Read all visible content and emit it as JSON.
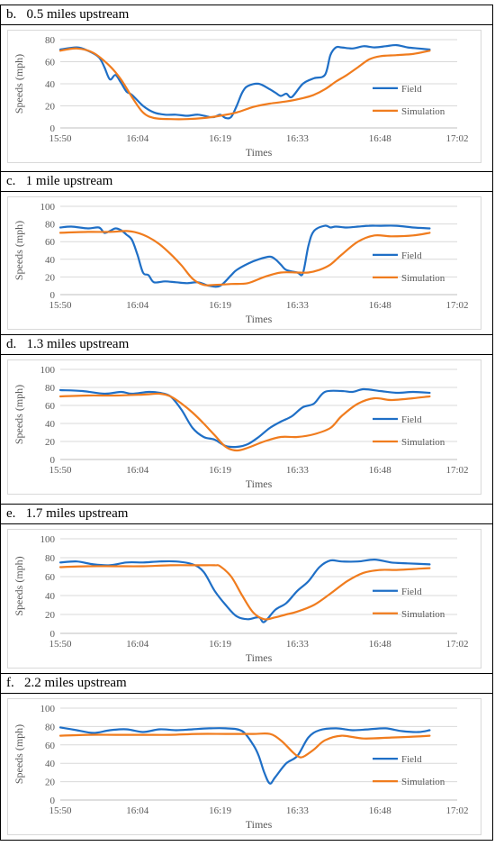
{
  "panels": [
    {
      "title": "b.   0.5 miles upstream"
    },
    {
      "title": "c.   1 mile upstream"
    },
    {
      "title": "d.   1.3 miles upstream"
    },
    {
      "title": "e.   1.7 miles upstream"
    },
    {
      "title": "f.   2.2 miles upstream"
    }
  ],
  "colors": {
    "field": "#1f6fc6",
    "simulation": "#f07c1e",
    "grid": "#d9d9d9",
    "axis_text": "#595959"
  },
  "chart_data": [
    {
      "type": "line",
      "title": "0.5 miles upstream",
      "xlabel": "Times",
      "ylabel": "Speeds (mph)",
      "xlim": [
        "15:50",
        "17:02"
      ],
      "ylim": [
        0,
        80
      ],
      "x_ticks": [
        "15:50",
        "16:04",
        "16:19",
        "16:33",
        "16:48",
        "17:02"
      ],
      "y_ticks": [
        0,
        20,
        40,
        60,
        80
      ],
      "grid": true,
      "legend_position": "right",
      "series": [
        {
          "name": "Field",
          "color": "#1f6fc6",
          "x": [
            "15:50",
            "15:53",
            "15:55",
            "15:57",
            "15:58",
            "15:59",
            "16:00",
            "16:01",
            "16:02",
            "16:03",
            "16:05",
            "16:07",
            "16:09",
            "16:11",
            "16:13",
            "16:15",
            "16:17",
            "16:18",
            "16:19",
            "16:20",
            "16:21",
            "16:22",
            "16:23",
            "16:24",
            "16:26",
            "16:28",
            "16:29",
            "16:30",
            "16:31",
            "16:32",
            "16:34",
            "16:36",
            "16:38",
            "16:39",
            "16:40",
            "16:41",
            "16:43",
            "16:45",
            "16:47",
            "16:49",
            "16:51",
            "16:53",
            "16:55",
            "16:57"
          ],
          "y": [
            71,
            73,
            70,
            64,
            55,
            44,
            48,
            41,
            33,
            30,
            20,
            14,
            12,
            12,
            11,
            12,
            10,
            10,
            12,
            9,
            10,
            20,
            32,
            38,
            40,
            35,
            32,
            29,
            31,
            28,
            40,
            45,
            48,
            66,
            73,
            73,
            72,
            74,
            73,
            74,
            75,
            73,
            72,
            71
          ]
        },
        {
          "name": "Simulation",
          "color": "#f07c1e",
          "x": [
            "15:50",
            "15:53",
            "15:56",
            "15:59",
            "16:01",
            "16:03",
            "16:05",
            "16:07",
            "16:10",
            "16:13",
            "16:16",
            "16:19",
            "16:22",
            "16:25",
            "16:28",
            "16:31",
            "16:34",
            "16:36",
            "16:38",
            "16:40",
            "16:42",
            "16:44",
            "16:46",
            "16:48",
            "16:51",
            "16:54",
            "16:57"
          ],
          "y": [
            70,
            72,
            68,
            56,
            44,
            28,
            14,
            9,
            8,
            8,
            9,
            11,
            14,
            19,
            22,
            24,
            27,
            30,
            35,
            42,
            48,
            55,
            62,
            65,
            66,
            67,
            70
          ]
        }
      ]
    },
    {
      "type": "line",
      "title": "1 mile upstream",
      "xlabel": "Times",
      "ylabel": "Speeds (mph)",
      "xlim": [
        "15:50",
        "17:02"
      ],
      "ylim": [
        0,
        100
      ],
      "x_ticks": [
        "15:50",
        "16:04",
        "16:19",
        "16:33",
        "16:48",
        "17:02"
      ],
      "y_ticks": [
        0,
        20,
        40,
        60,
        80,
        100
      ],
      "grid": true,
      "legend_position": "right",
      "series": [
        {
          "name": "Field",
          "color": "#1f6fc6",
          "x": [
            "15:50",
            "15:52",
            "15:55",
            "15:57",
            "15:58",
            "15:59",
            "16:00",
            "16:01",
            "16:02",
            "16:03",
            "16:04",
            "16:05",
            "16:06",
            "16:07",
            "16:09",
            "16:11",
            "16:13",
            "16:15",
            "16:17",
            "16:19",
            "16:21",
            "16:22",
            "16:24",
            "16:26",
            "16:28",
            "16:29",
            "16:30",
            "16:31",
            "16:33",
            "16:34",
            "16:35",
            "16:36",
            "16:38",
            "16:39",
            "16:40",
            "16:42",
            "16:44",
            "16:46",
            "16:48",
            "16:51",
            "16:54",
            "16:57"
          ],
          "y": [
            76,
            77,
            75,
            76,
            70,
            72,
            75,
            73,
            68,
            62,
            45,
            25,
            22,
            14,
            15,
            14,
            13,
            14,
            10,
            10,
            22,
            28,
            35,
            40,
            43,
            40,
            34,
            28,
            25,
            24,
            55,
            72,
            78,
            76,
            77,
            76,
            77,
            78,
            78,
            78,
            76,
            75
          ]
        },
        {
          "name": "Simulation",
          "color": "#f07c1e",
          "x": [
            "15:50",
            "15:55",
            "15:59",
            "16:02",
            "16:04",
            "16:06",
            "16:08",
            "16:10",
            "16:12",
            "16:14",
            "16:16",
            "16:18",
            "16:21",
            "16:24",
            "16:27",
            "16:30",
            "16:33",
            "16:35",
            "16:37",
            "16:39",
            "16:41",
            "16:44",
            "16:47",
            "16:50",
            "16:54",
            "16:57"
          ],
          "y": [
            70,
            71,
            71,
            72,
            70,
            65,
            57,
            46,
            33,
            18,
            11,
            11,
            12,
            13,
            20,
            25,
            25,
            25,
            28,
            34,
            45,
            60,
            67,
            66,
            67,
            70
          ]
        }
      ]
    },
    {
      "type": "line",
      "title": "1.3 miles upstream",
      "xlabel": "Times",
      "ylabel": "Speeds (mph)",
      "xlim": [
        "15:50",
        "17:02"
      ],
      "ylim": [
        0,
        100
      ],
      "x_ticks": [
        "15:50",
        "16:04",
        "16:19",
        "16:33",
        "16:48",
        "17:02"
      ],
      "y_ticks": [
        0,
        20,
        40,
        60,
        80,
        100
      ],
      "grid": true,
      "legend_position": "right",
      "series": [
        {
          "name": "Field",
          "color": "#1f6fc6",
          "x": [
            "15:50",
            "15:54",
            "15:58",
            "16:01",
            "16:03",
            "16:06",
            "16:08",
            "16:10",
            "16:12",
            "16:14",
            "16:16",
            "16:18",
            "16:20",
            "16:22",
            "16:24",
            "16:26",
            "16:28",
            "16:30",
            "16:32",
            "16:34",
            "16:36",
            "16:38",
            "16:41",
            "16:43",
            "16:45",
            "16:48",
            "16:51",
            "16:54",
            "16:57"
          ],
          "y": [
            77,
            76,
            73,
            75,
            73,
            75,
            74,
            70,
            55,
            35,
            25,
            22,
            15,
            14,
            17,
            25,
            35,
            42,
            48,
            58,
            62,
            75,
            76,
            75,
            78,
            76,
            74,
            75,
            74
          ]
        },
        {
          "name": "Simulation",
          "color": "#f07c1e",
          "x": [
            "15:50",
            "15:55",
            "16:00",
            "16:05",
            "16:08",
            "16:10",
            "16:12",
            "16:14",
            "16:16",
            "16:18",
            "16:20",
            "16:22",
            "16:24",
            "16:27",
            "16:30",
            "16:33",
            "16:36",
            "16:39",
            "16:41",
            "16:44",
            "16:47",
            "16:50",
            "16:54",
            "16:57"
          ],
          "y": [
            70,
            71,
            71,
            72,
            73,
            70,
            62,
            52,
            40,
            27,
            14,
            10,
            13,
            20,
            25,
            25,
            28,
            35,
            48,
            62,
            68,
            66,
            68,
            70
          ]
        }
      ]
    },
    {
      "type": "line",
      "title": "1.7 miles upstream",
      "xlabel": "Times",
      "ylabel": "Speeds (mph)",
      "xlim": [
        "15:50",
        "17:02"
      ],
      "ylim": [
        0,
        100
      ],
      "x_ticks": [
        "15:50",
        "16:04",
        "16:19",
        "16:33",
        "16:48",
        "17:02"
      ],
      "y_ticks": [
        0,
        20,
        40,
        60,
        80,
        100
      ],
      "grid": true,
      "legend_position": "right",
      "series": [
        {
          "name": "Field",
          "color": "#1f6fc6",
          "x": [
            "15:50",
            "15:53",
            "15:56",
            "15:59",
            "16:02",
            "16:05",
            "16:08",
            "16:11",
            "16:14",
            "16:16",
            "16:18",
            "16:20",
            "16:22",
            "16:24",
            "16:26",
            "16:27",
            "16:29",
            "16:31",
            "16:33",
            "16:35",
            "16:37",
            "16:39",
            "16:41",
            "16:44",
            "16:47",
            "16:50",
            "16:53",
            "16:57"
          ],
          "y": [
            75,
            76,
            73,
            72,
            75,
            75,
            76,
            76,
            73,
            65,
            45,
            30,
            18,
            15,
            17,
            12,
            25,
            32,
            45,
            55,
            70,
            77,
            76,
            76,
            78,
            75,
            74,
            73
          ]
        },
        {
          "name": "Simulation",
          "color": "#f07c1e",
          "x": [
            "15:50",
            "15:55",
            "16:00",
            "16:05",
            "16:10",
            "16:15",
            "16:18",
            "16:19",
            "16:21",
            "16:23",
            "16:25",
            "16:27",
            "16:29",
            "16:31",
            "16:33",
            "16:36",
            "16:39",
            "16:42",
            "16:45",
            "16:48",
            "16:51",
            "16:54",
            "16:57"
          ],
          "y": [
            70,
            71,
            71,
            71,
            72,
            72,
            72,
            71,
            60,
            40,
            22,
            15,
            17,
            20,
            23,
            30,
            42,
            55,
            64,
            67,
            67,
            68,
            69
          ]
        }
      ]
    },
    {
      "type": "line",
      "title": "2.2 miles upstream",
      "xlabel": "Times",
      "ylabel": "Speeds (mph)",
      "xlim": [
        "15:50",
        "17:02"
      ],
      "ylim": [
        0,
        100
      ],
      "x_ticks": [
        "15:50",
        "16:04",
        "16:19",
        "16:33",
        "16:48",
        "17:02"
      ],
      "y_ticks": [
        0,
        20,
        40,
        60,
        80,
        100
      ],
      "grid": true,
      "legend_position": "right",
      "series": [
        {
          "name": "Field",
          "color": "#1f6fc6",
          "x": [
            "15:50",
            "15:53",
            "15:56",
            "15:59",
            "16:02",
            "16:05",
            "16:08",
            "16:11",
            "16:14",
            "16:17",
            "16:20",
            "16:23",
            "16:25",
            "16:26",
            "16:27",
            "16:28",
            "16:29",
            "16:31",
            "16:33",
            "16:35",
            "16:37",
            "16:40",
            "16:43",
            "16:46",
            "16:49",
            "16:52",
            "16:55",
            "16:57"
          ],
          "y": [
            79,
            76,
            73,
            76,
            77,
            74,
            77,
            76,
            77,
            78,
            78,
            75,
            60,
            48,
            30,
            18,
            25,
            40,
            48,
            68,
            76,
            78,
            76,
            77,
            78,
            75,
            74,
            76
          ]
        },
        {
          "name": "Simulation",
          "color": "#f07c1e",
          "x": [
            "15:50",
            "15:55",
            "16:00",
            "16:05",
            "16:10",
            "16:15",
            "16:20",
            "16:25",
            "16:28",
            "16:30",
            "16:32",
            "16:33",
            "16:34",
            "16:36",
            "16:38",
            "16:41",
            "16:45",
            "16:50",
            "16:54",
            "16:57"
          ],
          "y": [
            70,
            71,
            71,
            71,
            71,
            72,
            72,
            72,
            72,
            65,
            53,
            48,
            47,
            55,
            65,
            70,
            67,
            68,
            69,
            70
          ]
        }
      ]
    }
  ]
}
